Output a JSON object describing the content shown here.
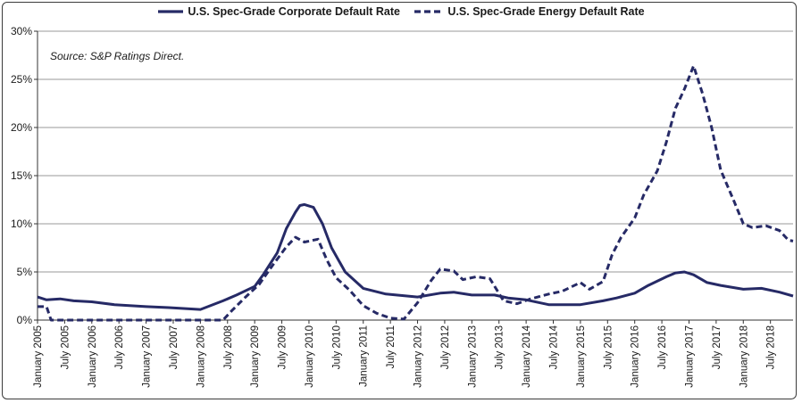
{
  "legend": {
    "series1": "U.S. Spec-Grade Corporate Default Rate",
    "series2": "U.S. Spec-Grade Energy Default Rate"
  },
  "source_note": "Source: S&P Ratings Direct.",
  "colors": {
    "line": "#262a66",
    "grid": "#9a9a9a",
    "axis": "#333333"
  },
  "chart_data": {
    "type": "line",
    "ylim": [
      0,
      30
    ],
    "yticks": [
      "0%",
      "5%",
      "10%",
      "15%",
      "20%",
      "25%",
      "30%"
    ],
    "xticks": [
      "January 2005",
      "July 2005",
      "January 2006",
      "July 2006",
      "January 2007",
      "July 2007",
      "January 2008",
      "July 2008",
      "January 2009",
      "July 2009",
      "January 2010",
      "July 2010",
      "January 2011",
      "July 2011",
      "January 2012",
      "July 2012",
      "January 2013",
      "July 2013",
      "January 2014",
      "July 2014",
      "January 2015",
      "July 2015",
      "January 2016",
      "July 2016",
      "January 2017",
      "July 2017",
      "January 2018",
      "July 2018"
    ],
    "grid": true,
    "legend_position": "top",
    "series": [
      {
        "name": "U.S. Spec-Grade Corporate Default Rate",
        "style": "solid",
        "points": [
          [
            "2005-01",
            2.4
          ],
          [
            "2005-03",
            2.1
          ],
          [
            "2005-06",
            2.2
          ],
          [
            "2005-09",
            2.0
          ],
          [
            "2006-01",
            1.9
          ],
          [
            "2006-06",
            1.6
          ],
          [
            "2007-01",
            1.4
          ],
          [
            "2007-06",
            1.3
          ],
          [
            "2008-01",
            1.1
          ],
          [
            "2008-06",
            2.0
          ],
          [
            "2008-09",
            2.6
          ],
          [
            "2009-01",
            3.5
          ],
          [
            "2009-03",
            4.8
          ],
          [
            "2009-06",
            7.0
          ],
          [
            "2009-08",
            9.5
          ],
          [
            "2009-10",
            11.2
          ],
          [
            "2009-11",
            11.9
          ],
          [
            "2009-12",
            12.0
          ],
          [
            "2010-02",
            11.7
          ],
          [
            "2010-04",
            10.0
          ],
          [
            "2010-06",
            7.5
          ],
          [
            "2010-09",
            5.0
          ],
          [
            "2011-01",
            3.3
          ],
          [
            "2011-06",
            2.7
          ],
          [
            "2012-01",
            2.4
          ],
          [
            "2012-06",
            2.8
          ],
          [
            "2012-09",
            2.9
          ],
          [
            "2013-01",
            2.6
          ],
          [
            "2013-06",
            2.6
          ],
          [
            "2013-09",
            2.3
          ],
          [
            "2014-01",
            2.1
          ],
          [
            "2014-06",
            1.6
          ],
          [
            "2014-09",
            1.6
          ],
          [
            "2015-01",
            1.6
          ],
          [
            "2015-06",
            2.0
          ],
          [
            "2015-09",
            2.3
          ],
          [
            "2016-01",
            2.8
          ],
          [
            "2016-04",
            3.6
          ],
          [
            "2016-08",
            4.5
          ],
          [
            "2016-10",
            4.9
          ],
          [
            "2016-12",
            5.0
          ],
          [
            "2017-02",
            4.7
          ],
          [
            "2017-05",
            3.9
          ],
          [
            "2017-08",
            3.6
          ],
          [
            "2018-01",
            3.2
          ],
          [
            "2018-05",
            3.3
          ],
          [
            "2018-09",
            2.9
          ],
          [
            "2018-12",
            2.5
          ]
        ]
      },
      {
        "name": "U.S. Spec-Grade Energy Default Rate",
        "style": "dashed",
        "points": [
          [
            "2005-01",
            1.4
          ],
          [
            "2005-03",
            1.4
          ],
          [
            "2005-04",
            0
          ],
          [
            "2008-06",
            0
          ],
          [
            "2008-08",
            1.0
          ],
          [
            "2008-11",
            2.4
          ],
          [
            "2009-02",
            3.7
          ],
          [
            "2009-05",
            5.7
          ],
          [
            "2009-08",
            7.6
          ],
          [
            "2009-10",
            8.6
          ],
          [
            "2009-12",
            8.1
          ],
          [
            "2010-03",
            8.4
          ],
          [
            "2010-04",
            7.3
          ],
          [
            "2010-05",
            6.2
          ],
          [
            "2010-07",
            4.4
          ],
          [
            "2010-10",
            3.1
          ],
          [
            "2011-01",
            1.5
          ],
          [
            "2011-04",
            0.7
          ],
          [
            "2011-07",
            0.2
          ],
          [
            "2011-10",
            0.1
          ],
          [
            "2012-01",
            1.8
          ],
          [
            "2012-04",
            4.1
          ],
          [
            "2012-06",
            5.3
          ],
          [
            "2012-09",
            5.1
          ],
          [
            "2012-11",
            4.2
          ],
          [
            "2013-02",
            4.5
          ],
          [
            "2013-05",
            4.3
          ],
          [
            "2013-08",
            2.0
          ],
          [
            "2013-11",
            1.7
          ],
          [
            "2014-02",
            2.2
          ],
          [
            "2014-06",
            2.7
          ],
          [
            "2014-09",
            3.0
          ],
          [
            "2015-01",
            3.9
          ],
          [
            "2015-03",
            3.2
          ],
          [
            "2015-06",
            4.0
          ],
          [
            "2015-08",
            6.8
          ],
          [
            "2015-10",
            8.6
          ],
          [
            "2016-01",
            10.6
          ],
          [
            "2016-03",
            13.0
          ],
          [
            "2016-06",
            15.5
          ],
          [
            "2016-08",
            18.5
          ],
          [
            "2016-10",
            22.0
          ],
          [
            "2016-12",
            24.0
          ],
          [
            "2017-02",
            26.4
          ],
          [
            "2017-04",
            23.5
          ],
          [
            "2017-06",
            20.0
          ],
          [
            "2017-08",
            15.6
          ],
          [
            "2017-11",
            12.3
          ],
          [
            "2018-01",
            10.0
          ],
          [
            "2018-03",
            9.6
          ],
          [
            "2018-06",
            9.8
          ],
          [
            "2018-09",
            9.3
          ],
          [
            "2018-11",
            8.3
          ],
          [
            "2018-12",
            8.2
          ]
        ]
      }
    ]
  }
}
